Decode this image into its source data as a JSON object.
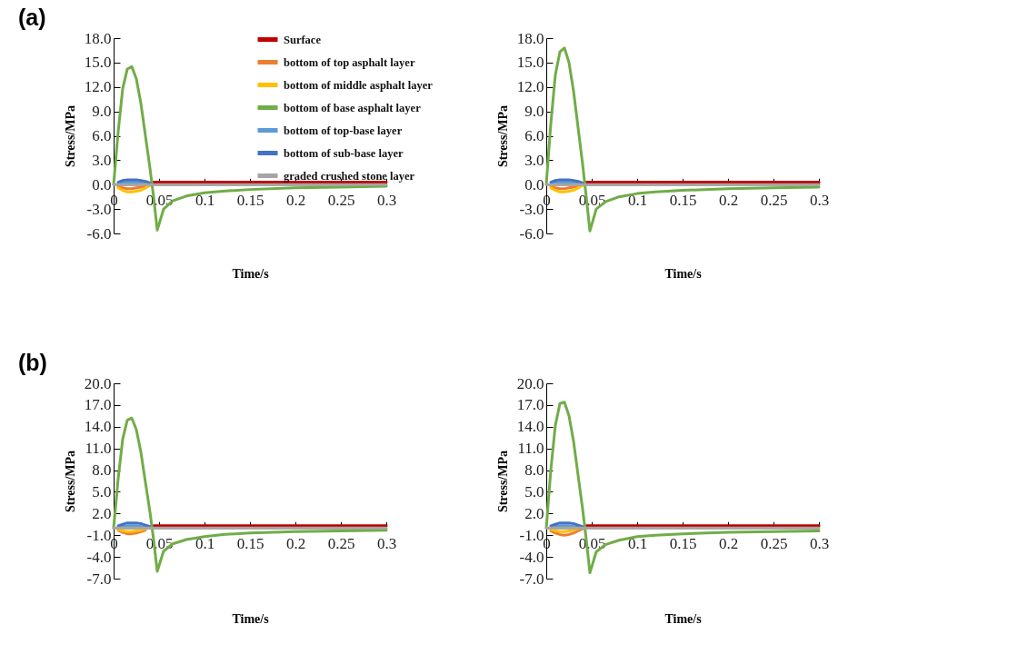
{
  "chart_data": [
    {
      "type": "line",
      "annotations": [
        "(a)"
      ],
      "xlabel": "Time/s",
      "ylabel": "Stress/MPa",
      "legend": "top right",
      "grid": false,
      "line_style": "solid",
      "marker": "none",
      "x": [
        0,
        0.005,
        0.01,
        0.015,
        0.02,
        0.025,
        0.03,
        0.035,
        0.04,
        0.044,
        0.048,
        0.055,
        0.065,
        0.08,
        0.1,
        0.12,
        0.15,
        0.2,
        0.25,
        0.3
      ],
      "xlim": [
        0,
        0.3
      ],
      "xticks": [
        0,
        0.05,
        0.1,
        0.15,
        0.2,
        0.25,
        0.3
      ],
      "ylim": [
        -6,
        18
      ],
      "yticks": [
        {
          "value": -6,
          "label": "-6.0"
        },
        {
          "value": -3,
          "label": "-3.0"
        },
        {
          "value": 0,
          "label": "0.0"
        },
        {
          "value": 3,
          "label": "3.0"
        },
        {
          "value": 6,
          "label": "6.0"
        },
        {
          "value": 9,
          "label": "9.0"
        },
        {
          "value": 12,
          "label": "12.0"
        },
        {
          "value": 15,
          "label": "15.0"
        },
        {
          "value": 18,
          "label": "18.0"
        }
      ],
      "series": [
        {
          "name": "Surface",
          "color": "#c00000",
          "values": [
            null,
            null,
            null,
            null,
            null,
            null,
            null,
            null,
            null,
            0.3,
            0.3,
            0.3,
            0.3,
            0.3,
            0.3,
            0.3,
            0.3,
            0.3,
            0.3,
            0.3
          ]
        },
        {
          "name": "bottom of top asphalt layer",
          "color": "#ed7d31",
          "values": [
            null,
            -0.2,
            -0.4,
            -0.5,
            -0.5,
            -0.4,
            -0.3,
            -0.2,
            null,
            null,
            null,
            null,
            null,
            null,
            null,
            null,
            null,
            null,
            null,
            null
          ]
        },
        {
          "name": "bottom of middle asphalt layer",
          "color": "#ffc000",
          "values": [
            null,
            -0.4,
            -0.7,
            -0.9,
            -0.9,
            -0.8,
            -0.7,
            -0.4,
            -0.1,
            null,
            null,
            null,
            null,
            null,
            null,
            null,
            null,
            null,
            null,
            null
          ]
        },
        {
          "name": "bottom of base asphalt layer",
          "color": "#70ad47",
          "values": [
            0,
            6.5,
            11.8,
            14.2,
            14.5,
            13.0,
            10.0,
            6.0,
            2.0,
            -1.5,
            -5.6,
            -3.0,
            -2.0,
            -1.4,
            -1.0,
            -0.8,
            -0.6,
            -0.4,
            -0.3,
            -0.2
          ]
        },
        {
          "name": "bottom of top-base layer",
          "color": "#5b9bd5",
          "values": [
            null,
            0.1,
            0.2,
            0.3,
            0.3,
            0.3,
            0.2,
            0.1,
            null,
            null,
            null,
            null,
            null,
            null,
            null,
            null,
            null,
            null,
            null,
            null
          ]
        },
        {
          "name": "bottom of sub-base layer",
          "color": "#4472c4",
          "values": [
            null,
            0.3,
            0.5,
            0.6,
            0.6,
            0.6,
            0.5,
            0.4,
            0.2,
            null,
            null,
            null,
            null,
            null,
            null,
            null,
            null,
            null,
            null,
            null
          ]
        },
        {
          "name": "graded crushed stone layer",
          "color": "#a5a5a5",
          "values": [
            0,
            0,
            0,
            0,
            0,
            0,
            0,
            0,
            0,
            0,
            0,
            0,
            0,
            0,
            0,
            0,
            0,
            0,
            0,
            0
          ]
        }
      ]
    },
    {
      "type": "line",
      "xlabel": "Time/s",
      "ylabel": "Stress/MPa",
      "legend": "top right",
      "grid": false,
      "line_style": "solid",
      "marker": "none",
      "x": [
        0,
        0.005,
        0.01,
        0.015,
        0.02,
        0.025,
        0.03,
        0.035,
        0.04,
        0.044,
        0.048,
        0.055,
        0.065,
        0.08,
        0.1,
        0.12,
        0.15,
        0.2,
        0.25,
        0.3
      ],
      "xlim": [
        0,
        0.3
      ],
      "xticks": [
        0,
        0.05,
        0.1,
        0.15,
        0.2,
        0.25,
        0.3
      ],
      "ylim": [
        -6,
        18
      ],
      "yticks": [
        {
          "value": -6,
          "label": "-6.0"
        },
        {
          "value": -3,
          "label": "-3.0"
        },
        {
          "value": 0,
          "label": "0.0"
        },
        {
          "value": 3,
          "label": "3.0"
        },
        {
          "value": 6,
          "label": "6.0"
        },
        {
          "value": 9,
          "label": "9.0"
        },
        {
          "value": 12,
          "label": "12.0"
        },
        {
          "value": 15,
          "label": "15.0"
        },
        {
          "value": 18,
          "label": "18.0"
        }
      ],
      "series": [
        {
          "name": "Surface",
          "color": "#c00000",
          "values": [
            null,
            null,
            null,
            null,
            null,
            null,
            null,
            null,
            null,
            0.3,
            0.3,
            0.3,
            0.3,
            0.3,
            0.3,
            0.3,
            0.3,
            0.3,
            0.3,
            0.3
          ]
        },
        {
          "name": "bottom of top asphalt layer",
          "color": "#ed7d31",
          "values": [
            null,
            -0.2,
            -0.4,
            -0.5,
            -0.5,
            -0.4,
            -0.3,
            -0.2,
            null,
            null,
            null,
            null,
            null,
            null,
            null,
            null,
            null,
            null,
            null,
            null
          ]
        },
        {
          "name": "bottom of middle asphalt layer",
          "color": "#ffc000",
          "values": [
            null,
            -0.4,
            -0.7,
            -0.9,
            -0.9,
            -0.8,
            -0.7,
            -0.4,
            -0.1,
            null,
            null,
            null,
            null,
            null,
            null,
            null,
            null,
            null,
            null,
            null
          ]
        },
        {
          "name": "bottom of base asphalt layer",
          "color": "#70ad47",
          "values": [
            0,
            7.5,
            13.5,
            16.3,
            16.8,
            15.0,
            11.5,
            7.0,
            2.5,
            -1.5,
            -5.7,
            -3.0,
            -2.1,
            -1.5,
            -1.1,
            -0.9,
            -0.7,
            -0.5,
            -0.4,
            -0.3
          ]
        },
        {
          "name": "bottom of top-base layer",
          "color": "#5b9bd5",
          "values": [
            null,
            0.1,
            0.2,
            0.3,
            0.3,
            0.3,
            0.2,
            0.1,
            null,
            null,
            null,
            null,
            null,
            null,
            null,
            null,
            null,
            null,
            null,
            null
          ]
        },
        {
          "name": "bottom of sub-base layer",
          "color": "#4472c4",
          "values": [
            null,
            0.3,
            0.5,
            0.6,
            0.6,
            0.6,
            0.5,
            0.4,
            0.2,
            null,
            null,
            null,
            null,
            null,
            null,
            null,
            null,
            null,
            null,
            null
          ]
        },
        {
          "name": "graded crushed stone layer",
          "color": "#a5a5a5",
          "values": [
            0,
            0,
            0,
            0,
            0,
            0,
            0,
            0,
            0,
            0,
            0,
            0,
            0,
            0,
            0,
            0,
            0,
            0,
            0,
            0
          ]
        }
      ]
    },
    {
      "type": "line",
      "annotations": [
        "(b)"
      ],
      "xlabel": "Time/s",
      "ylabel": "Stress/MPa",
      "legend": "top right",
      "grid": false,
      "line_style": "solid",
      "marker": "none",
      "x": [
        0,
        0.005,
        0.01,
        0.015,
        0.02,
        0.025,
        0.03,
        0.035,
        0.04,
        0.044,
        0.048,
        0.055,
        0.065,
        0.08,
        0.1,
        0.12,
        0.15,
        0.2,
        0.25,
        0.3
      ],
      "xlim": [
        0,
        0.3
      ],
      "xticks": [
        0,
        0.05,
        0.1,
        0.15,
        0.2,
        0.25,
        0.3
      ],
      "ylim": [
        -7,
        20
      ],
      "yticks": [
        {
          "value": -7,
          "label": "-7.0"
        },
        {
          "value": -4,
          "label": "-4.0"
        },
        {
          "value": -1,
          "label": "-1.0"
        },
        {
          "value": 2,
          "label": "2.0"
        },
        {
          "value": 5,
          "label": "5.0"
        },
        {
          "value": 8,
          "label": "8.0"
        },
        {
          "value": 11,
          "label": "11.0"
        },
        {
          "value": 14,
          "label": "14.0"
        },
        {
          "value": 17,
          "label": "17.0"
        },
        {
          "value": 20,
          "label": "20.0"
        }
      ],
      "series": [
        {
          "name": "Surface",
          "color": "#c00000",
          "values": [
            null,
            null,
            null,
            null,
            null,
            null,
            null,
            null,
            null,
            0.3,
            0.3,
            0.3,
            0.3,
            0.3,
            0.3,
            0.3,
            0.3,
            0.3,
            0.3,
            0.3
          ]
        },
        {
          "name": "bottom of top asphalt layer",
          "color": "#ed7d31",
          "values": [
            null,
            -0.3,
            -0.6,
            -0.8,
            -0.8,
            -0.7,
            -0.5,
            -0.3,
            null,
            null,
            null,
            null,
            null,
            null,
            null,
            null,
            null,
            null,
            null,
            null
          ]
        },
        {
          "name": "bottom of middle asphalt layer",
          "color": "#ffc000",
          "values": [
            null,
            -0.2,
            -0.4,
            -0.5,
            -0.5,
            -0.4,
            -0.3,
            -0.1,
            null,
            null,
            null,
            null,
            null,
            null,
            null,
            null,
            null,
            null,
            null,
            null
          ]
        },
        {
          "name": "bottom of base asphalt layer",
          "color": "#70ad47",
          "values": [
            0,
            6.8,
            12.3,
            14.9,
            15.2,
            13.6,
            10.5,
            6.3,
            2.2,
            -1.6,
            -6.0,
            -3.2,
            -2.2,
            -1.6,
            -1.2,
            -0.9,
            -0.7,
            -0.5,
            -0.4,
            -0.3
          ]
        },
        {
          "name": "bottom of top-base layer",
          "color": "#5b9bd5",
          "values": [
            null,
            0.1,
            0.2,
            0.3,
            0.3,
            0.3,
            0.2,
            0.1,
            null,
            null,
            null,
            null,
            null,
            null,
            null,
            null,
            null,
            null,
            null,
            null
          ]
        },
        {
          "name": "bottom of sub-base layer",
          "color": "#4472c4",
          "values": [
            null,
            0.3,
            0.5,
            0.7,
            0.7,
            0.7,
            0.6,
            0.4,
            0.2,
            null,
            null,
            null,
            null,
            null,
            null,
            null,
            null,
            null,
            null,
            null
          ]
        },
        {
          "name": "graded crushed stone layer",
          "color": "#a5a5a5",
          "values": [
            0,
            0,
            0,
            0,
            0,
            0,
            0,
            0,
            0,
            0,
            0,
            0,
            0,
            0,
            0,
            0,
            0,
            0,
            0,
            0
          ]
        }
      ]
    },
    {
      "type": "line",
      "xlabel": "Time/s",
      "ylabel": "Stress/MPa",
      "legend": "top right",
      "grid": false,
      "line_style": "solid",
      "marker": "none",
      "x": [
        0,
        0.005,
        0.01,
        0.015,
        0.02,
        0.025,
        0.03,
        0.035,
        0.04,
        0.044,
        0.048,
        0.055,
        0.065,
        0.08,
        0.1,
        0.12,
        0.15,
        0.2,
        0.25,
        0.3
      ],
      "xlim": [
        0,
        0.3
      ],
      "xticks": [
        0,
        0.05,
        0.1,
        0.15,
        0.2,
        0.25,
        0.3
      ],
      "ylim": [
        -7,
        20
      ],
      "yticks": [
        {
          "value": -7,
          "label": "-7.0"
        },
        {
          "value": -4,
          "label": "-4.0"
        },
        {
          "value": -1,
          "label": "-1.0"
        },
        {
          "value": 2,
          "label": "2.0"
        },
        {
          "value": 5,
          "label": "5.0"
        },
        {
          "value": 8,
          "label": "8.0"
        },
        {
          "value": 11,
          "label": "11.0"
        },
        {
          "value": 14,
          "label": "14.0"
        },
        {
          "value": 17,
          "label": "17.0"
        },
        {
          "value": 20,
          "label": "20.0"
        }
      ],
      "series": [
        {
          "name": "Surface",
          "color": "#c00000",
          "values": [
            null,
            null,
            null,
            null,
            null,
            null,
            null,
            null,
            null,
            0.3,
            0.3,
            0.3,
            0.3,
            0.3,
            0.3,
            0.3,
            0.3,
            0.3,
            0.3,
            0.3
          ]
        },
        {
          "name": "bottom of top asphalt layer",
          "color": "#ed7d31",
          "values": [
            null,
            -0.4,
            -0.7,
            -0.9,
            -1.0,
            -0.9,
            -0.7,
            -0.4,
            -0.1,
            null,
            null,
            null,
            null,
            null,
            null,
            null,
            null,
            null,
            null,
            null
          ]
        },
        {
          "name": "bottom of middle asphalt layer",
          "color": "#ffc000",
          "values": [
            null,
            -0.2,
            -0.4,
            -0.5,
            -0.5,
            -0.4,
            -0.3,
            -0.1,
            null,
            null,
            null,
            null,
            null,
            null,
            null,
            null,
            null,
            null,
            null,
            null
          ]
        },
        {
          "name": "bottom of base asphalt layer",
          "color": "#70ad47",
          "values": [
            0,
            8.0,
            14.2,
            17.2,
            17.4,
            15.5,
            12.0,
            7.3,
            2.6,
            -1.6,
            -6.2,
            -3.3,
            -2.3,
            -1.7,
            -1.2,
            -1.0,
            -0.8,
            -0.6,
            -0.5,
            -0.4
          ]
        },
        {
          "name": "bottom of top-base layer",
          "color": "#5b9bd5",
          "values": [
            null,
            0.1,
            0.2,
            0.3,
            0.3,
            0.3,
            0.2,
            0.1,
            null,
            null,
            null,
            null,
            null,
            null,
            null,
            null,
            null,
            null,
            null,
            null
          ]
        },
        {
          "name": "bottom of sub-base layer",
          "color": "#4472c4",
          "values": [
            null,
            0.3,
            0.5,
            0.7,
            0.7,
            0.7,
            0.6,
            0.4,
            0.2,
            null,
            null,
            null,
            null,
            null,
            null,
            null,
            null,
            null,
            null,
            null
          ]
        },
        {
          "name": "graded crushed stone layer",
          "color": "#a5a5a5",
          "values": [
            0,
            0,
            0,
            0,
            0,
            0,
            0,
            0,
            0,
            0,
            0,
            0,
            0,
            0,
            0,
            0,
            0,
            0,
            0,
            0
          ]
        }
      ]
    }
  ]
}
